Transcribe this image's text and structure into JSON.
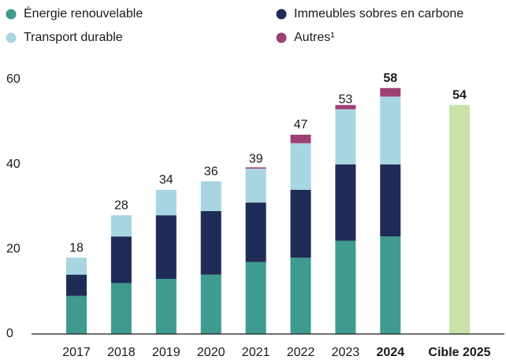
{
  "chart_data": {
    "type": "stacked-bar",
    "categories": [
      "2017",
      "2018",
      "2019",
      "2020",
      "2021",
      "2022",
      "2023",
      "2024",
      "Cible 2025"
    ],
    "series": [
      {
        "name": "Énergie renouvelable",
        "color": "#3f9a8f",
        "values": [
          9,
          12,
          13,
          14,
          17,
          18,
          22,
          23,
          null
        ]
      },
      {
        "name": "Immeubles sobres en carbone",
        "color": "#1e2b57",
        "values": [
          5,
          11,
          15,
          15,
          14,
          16,
          18,
          17,
          null
        ]
      },
      {
        "name": "Transport durable",
        "color": "#a8d5e2",
        "values": [
          4,
          5,
          6,
          7,
          8,
          11,
          13,
          16,
          null
        ]
      },
      {
        "name": "Autres¹",
        "color": "#9e3f74",
        "values": [
          null,
          null,
          null,
          null,
          0.3,
          2,
          1,
          2,
          null
        ]
      },
      {
        "color": "#c8e2a8",
        "values": [
          null,
          null,
          null,
          null,
          null,
          null,
          null,
          null,
          54
        ]
      }
    ],
    "totals": [
      18,
      28,
      34,
      36,
      39,
      47,
      53,
      58,
      54
    ],
    "emphasis": [
      7,
      8
    ],
    "ylim": [
      0,
      60
    ],
    "yticks": [
      0,
      20,
      40,
      60
    ],
    "grid": false
  }
}
